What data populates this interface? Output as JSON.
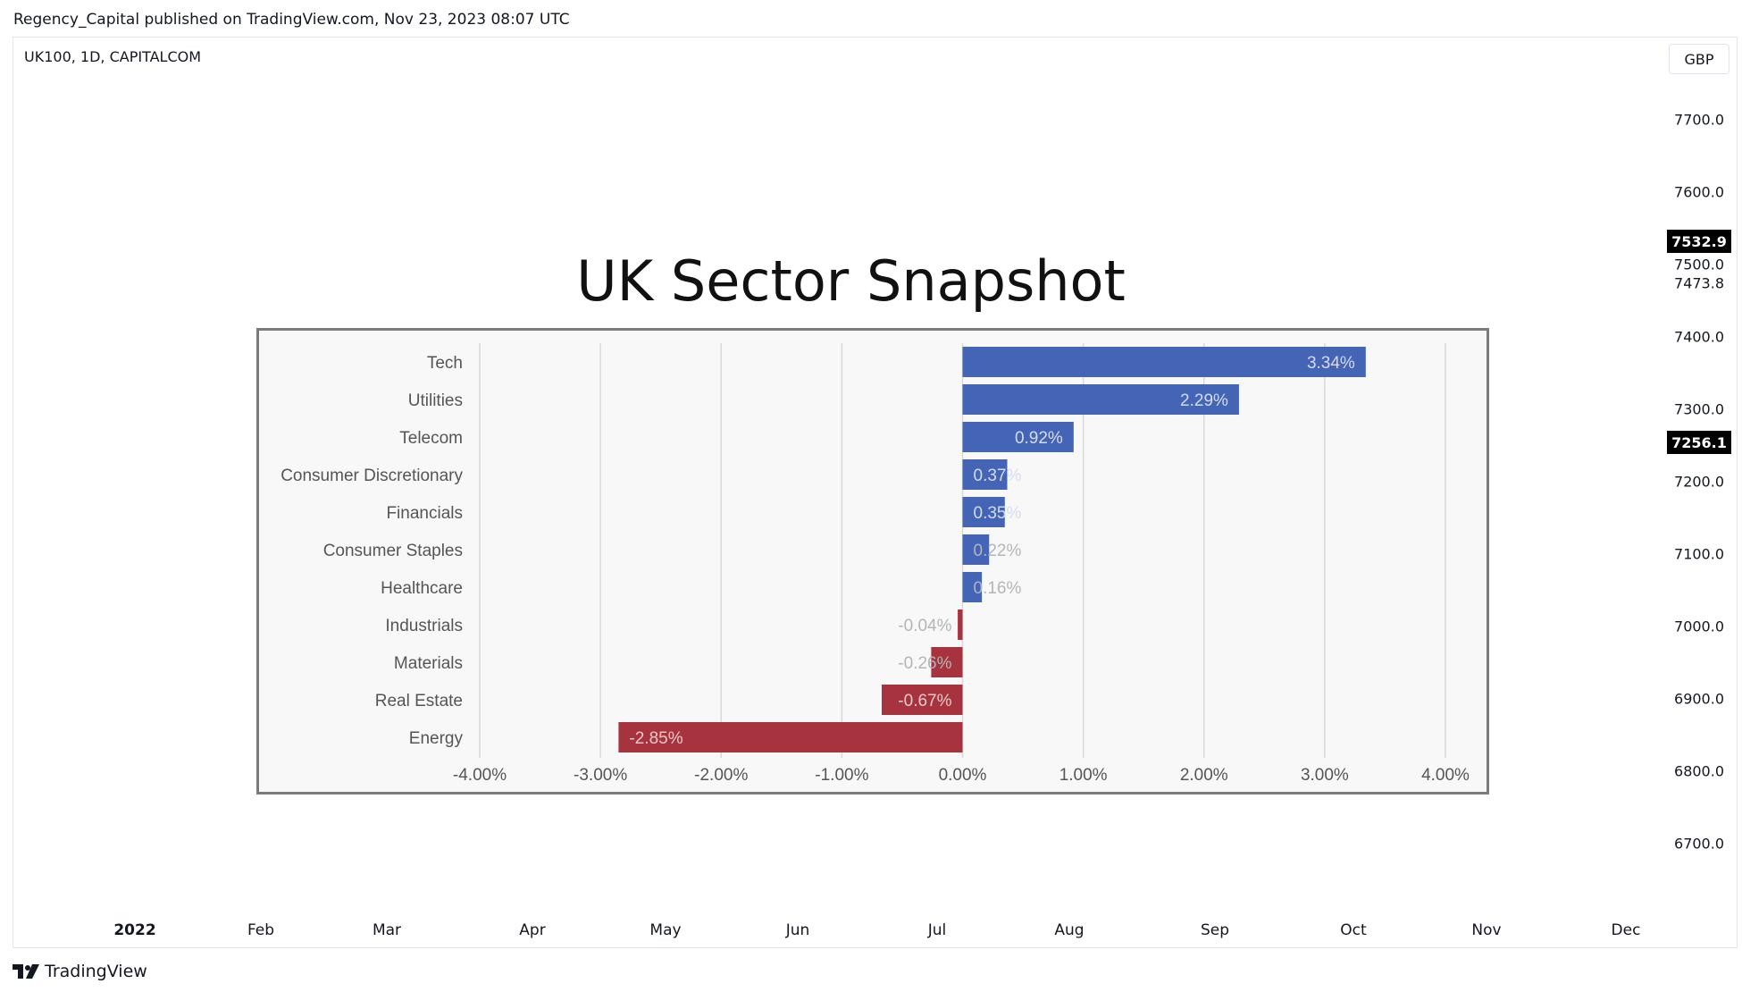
{
  "header": {
    "published_line": "Regency_Capital published on TradingView.com, Nov 23, 2023 08:07 UTC",
    "symbol": "UK100, 1D, CAPITALCOM",
    "currency": "GBP"
  },
  "price_axis": {
    "ticks": [
      "7700.0",
      "7600.0",
      "7500.0",
      "7473.8",
      "7400.0",
      "7300.0",
      "7200.0",
      "7100.0",
      "7000.0",
      "6900.0",
      "6800.0",
      "6700.0"
    ],
    "badges": [
      "7532.9",
      "7256.1"
    ]
  },
  "time_axis": {
    "ticks": [
      "2022",
      "Feb",
      "Mar",
      "Apr",
      "May",
      "Jun",
      "Jul",
      "Aug",
      "Sep",
      "Oct",
      "Nov",
      "Dec"
    ]
  },
  "footer": {
    "brand": "TradingView"
  },
  "colors": {
    "positive": "#4464b5",
    "negative": "#a7333e",
    "positive_label": "#d6dcee",
    "negative_label": "#e9c9cc",
    "outside_label": "#b5b5b5"
  },
  "chart_data": {
    "type": "bar",
    "orientation": "horizontal",
    "title": "UK Sector Snapshot",
    "categories": [
      "Tech",
      "Utilities",
      "Telecom",
      "Consumer Discretionary",
      "Financials",
      "Consumer Staples",
      "Healthcare",
      "Industrials",
      "Materials",
      "Real Estate",
      "Energy"
    ],
    "values": [
      3.34,
      2.29,
      0.92,
      0.37,
      0.35,
      0.22,
      0.16,
      -0.04,
      -0.26,
      -0.67,
      -2.85
    ],
    "labels": [
      "3.34%",
      "2.29%",
      "0.92%",
      "0.37%",
      "0.35%",
      "0.22%",
      "0.16%",
      "-0.04%",
      "-0.26%",
      "-0.67%",
      "-2.85%"
    ],
    "xlim": [
      -4,
      4
    ],
    "xticks": [
      "-4.00%",
      "-3.00%",
      "-2.00%",
      "-1.00%",
      "0.00%",
      "1.00%",
      "2.00%",
      "3.00%",
      "4.00%"
    ],
    "grid": true,
    "legend": "none"
  }
}
